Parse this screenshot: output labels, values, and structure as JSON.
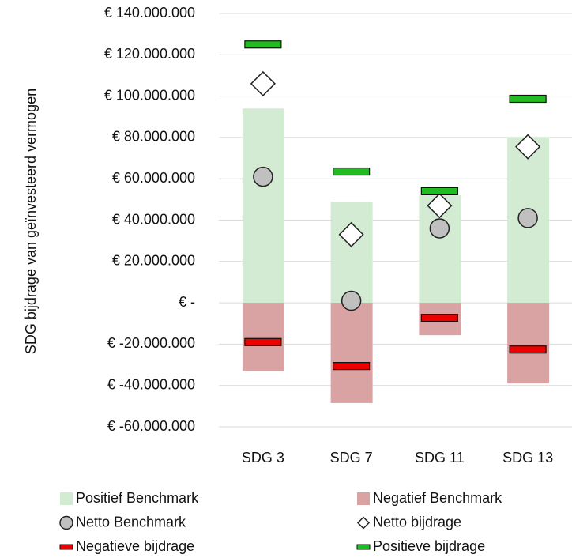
{
  "chart_data": {
    "type": "combo",
    "y_label": "SDG bijdrage van geïnvesteerd vermogen",
    "categories": [
      "SDG 3",
      "SDG 7",
      "SDG 11",
      "SDG 13"
    ],
    "ylim": [
      -60000000,
      140000000
    ],
    "yticks": [
      {
        "value": -60000000,
        "label": "€ -60.000.000"
      },
      {
        "value": -40000000,
        "label": "€ -40.000.000"
      },
      {
        "value": -20000000,
        "label": "€ -20.000.000"
      },
      {
        "value": 0,
        "label": "€ -"
      },
      {
        "value": 20000000,
        "label": "€ 20.000.000"
      },
      {
        "value": 40000000,
        "label": "€ 40.000.000"
      },
      {
        "value": 60000000,
        "label": "€ 60.000.000"
      },
      {
        "value": 80000000,
        "label": "€ 80.000.000"
      },
      {
        "value": 100000000,
        "label": "€ 100.000.000"
      },
      {
        "value": 120000000,
        "label": "€ 120.000.000"
      },
      {
        "value": 140000000,
        "label": "€ 140.000.000"
      }
    ],
    "grid": true,
    "legend": "bottom",
    "series": [
      {
        "name": "Positief Benchmark",
        "mark": "bar",
        "color": "#d2ebd2",
        "values": [
          94000000,
          49000000,
          52000000,
          80000000
        ]
      },
      {
        "name": "Negatief Benchmark",
        "mark": "bar",
        "color": "#d9a3a3",
        "values": [
          -33000000,
          -48500000,
          -15700000,
          -39000000
        ]
      },
      {
        "name": "Netto Benchmark",
        "mark": "circle",
        "color": "#c0c0c0",
        "values": [
          61000000,
          1000000,
          36000000,
          41000000
        ]
      },
      {
        "name": "Netto bijdrage",
        "mark": "diamond",
        "color": "#ffffff",
        "values": [
          106000000,
          33000000,
          47000000,
          75500000
        ]
      },
      {
        "name": "Negatieve bijdrage",
        "mark": "dash",
        "color": "#ee0000",
        "values": [
          -19000000,
          -30600000,
          -7300000,
          -22600000
        ]
      },
      {
        "name": "Positieve bijdrage",
        "mark": "dash",
        "color": "#22bb22",
        "values": [
          125000000,
          63500000,
          54000000,
          98700000
        ]
      }
    ]
  }
}
